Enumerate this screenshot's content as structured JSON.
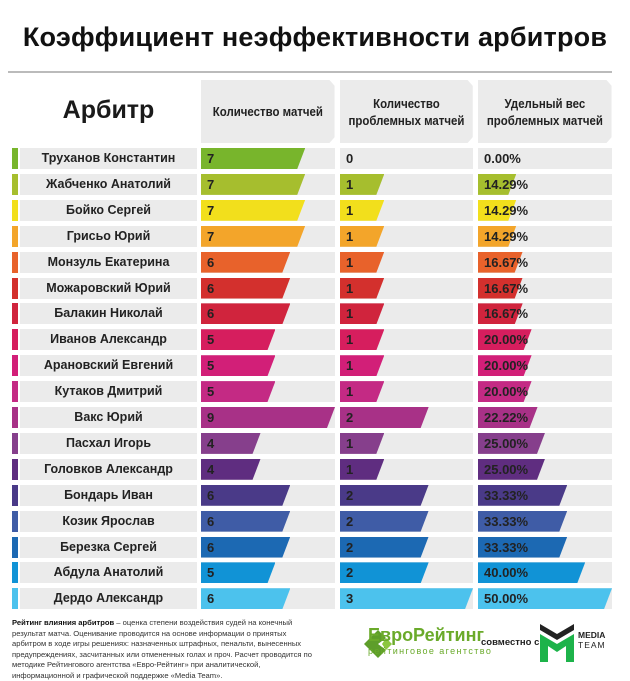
{
  "title": "Коэффициент неэффективности арбитров",
  "headers": {
    "arbiter": "Арбитр",
    "matches": "Количество матчей",
    "problem": "Количество проблемных матчей",
    "weight": "Удельный вес проблемных матчей"
  },
  "chart_data": {
    "type": "table",
    "title": "Коэффициент неэффективности арбитров",
    "columns": [
      "Арбитр",
      "Количество матчей",
      "Количество проблемных матчей",
      "Удельный вес проблемных матчей"
    ],
    "scales": {
      "matches": [
        0,
        9
      ],
      "problem": [
        0,
        3
      ],
      "weight": [
        0,
        50
      ]
    },
    "rows": [
      {
        "name": "Труханов Константин",
        "matches": 7,
        "problem": 0,
        "weight": 0,
        "weight_label": "0.00%",
        "color": "#78b52c"
      },
      {
        "name": "Жабченко Анатолий",
        "matches": 7,
        "problem": 1,
        "weight": 14.29,
        "weight_label": "14.29%",
        "color": "#a6be2e"
      },
      {
        "name": "Бойко Сергей",
        "matches": 7,
        "problem": 1,
        "weight": 14.29,
        "weight_label": "14.29%",
        "color": "#f2df1c"
      },
      {
        "name": "Грисьо Юрий",
        "matches": 7,
        "problem": 1,
        "weight": 14.29,
        "weight_label": "14.29%",
        "color": "#f3a52a"
      },
      {
        "name": "Монзуль Екатерина",
        "matches": 6,
        "problem": 1,
        "weight": 16.67,
        "weight_label": "16.67%",
        "color": "#e8622b"
      },
      {
        "name": "Можаровский Юрий",
        "matches": 6,
        "problem": 1,
        "weight": 16.67,
        "weight_label": "16.67%",
        "color": "#d3302d"
      },
      {
        "name": "Балакин Николай",
        "matches": 6,
        "problem": 1,
        "weight": 16.67,
        "weight_label": "16.67%",
        "color": "#d0243d"
      },
      {
        "name": "Иванов Александр",
        "matches": 5,
        "problem": 1,
        "weight": 20,
        "weight_label": "20.00%",
        "color": "#d61e5e"
      },
      {
        "name": "Арановский Евгений",
        "matches": 5,
        "problem": 1,
        "weight": 20,
        "weight_label": "20.00%",
        "color": "#d21f78"
      },
      {
        "name": "Кутаков Дмитрий",
        "matches": 5,
        "problem": 1,
        "weight": 20,
        "weight_label": "20.00%",
        "color": "#c42a84"
      },
      {
        "name": "Вакс Юрий",
        "matches": 9,
        "problem": 2,
        "weight": 22.22,
        "weight_label": "22.22%",
        "color": "#a83187"
      },
      {
        "name": "Пасхал Игорь",
        "matches": 4,
        "problem": 1,
        "weight": 25,
        "weight_label": "25.00%",
        "color": "#863f8c"
      },
      {
        "name": "Головков Александр",
        "matches": 4,
        "problem": 1,
        "weight": 25,
        "weight_label": "25.00%",
        "color": "#5f2d80"
      },
      {
        "name": "Бондарь Иван",
        "matches": 6,
        "problem": 2,
        "weight": 33.33,
        "weight_label": "33.33%",
        "color": "#4a3a88"
      },
      {
        "name": "Козик Ярослав",
        "matches": 6,
        "problem": 2,
        "weight": 33.33,
        "weight_label": "33.33%",
        "color": "#3f5ca6"
      },
      {
        "name": "Березка Сергей",
        "matches": 6,
        "problem": 2,
        "weight": 33.33,
        "weight_label": "33.33%",
        "color": "#1c69b3"
      },
      {
        "name": "Абдула Анатолий",
        "matches": 5,
        "problem": 2,
        "weight": 40,
        "weight_label": "40.00%",
        "color": "#1193d6"
      },
      {
        "name": "Дердо Александр",
        "matches": 6,
        "problem": 3,
        "weight": 50,
        "weight_label": "50.00%",
        "color": "#4cc2ed"
      }
    ]
  },
  "footer": {
    "note_bold": "Рейтинг влияния арбитров",
    "note_text": " – оценка степени воздействия судей на конечный результат матча. Оценивание проводится на основе информации о принятых арбитром в ходе игры решениях: назначенных штрафных, пенальти, вынесенных предупреждениях, засчитанных или отмененных голах и проч. Расчет проводится по методике Рейтингового агентства «Евро-Рейтинг» при аналитической, информационной и графической поддержке «Media Team».",
    "er_name": "ЕвроРейтинг",
    "er_sub": "рейтинговое агентство",
    "with": "совместно с",
    "mt_line1": "MEDIA",
    "mt_line2": "TEAM"
  }
}
